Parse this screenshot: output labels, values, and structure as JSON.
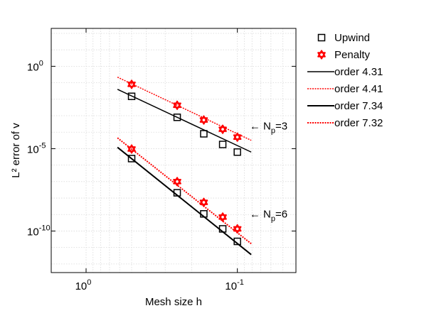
{
  "chart_data": {
    "type": "scatter",
    "title": "",
    "xlabel": "Mesh size h",
    "ylabel": "L² error of v",
    "xscale": "log",
    "yscale": "log",
    "x_reversed": true,
    "xlim": [
      1.7,
      0.041
    ],
    "ylim": [
      3e-13,
      200.0
    ],
    "grid": true,
    "legend_position": "right, outside",
    "x_ticks": [
      {
        "value": 1,
        "base": "10",
        "exp": "0"
      },
      {
        "value": 0.1,
        "base": "10",
        "exp": "-1"
      }
    ],
    "y_ticks": [
      {
        "value": 1,
        "base": "10",
        "exp": "0"
      },
      {
        "value": 1e-05,
        "base": "10",
        "exp": "-5"
      },
      {
        "value": 1e-10,
        "base": "10",
        "exp": "-10"
      }
    ],
    "series": [
      {
        "name": "Upwind",
        "kind": "markers",
        "marker": "square",
        "color": "#000000",
        "points": [
          {
            "x": 0.5,
            "y": 0.015
          },
          {
            "x": 0.25,
            "y": 0.0008
          },
          {
            "x": 0.1667,
            "y": 8e-05
          },
          {
            "x": 0.125,
            "y": 1.8e-05
          },
          {
            "x": 0.1,
            "y": 6.2e-06
          }
        ]
      },
      {
        "name": "Penalty",
        "kind": "markers",
        "marker": "hexagram",
        "color": "#ff0000",
        "points": [
          {
            "x": 0.5,
            "y": 0.08
          },
          {
            "x": 0.25,
            "y": 0.0043
          },
          {
            "x": 0.1667,
            "y": 0.00055
          },
          {
            "x": 0.125,
            "y": 0.00015
          },
          {
            "x": 0.1,
            "y": 5e-05
          }
        ]
      },
      {
        "name": "Upwind",
        "kind": "markers",
        "marker": "square",
        "color": "#000000",
        "points": [
          {
            "x": 0.5,
            "y": 2.5e-06
          },
          {
            "x": 0.25,
            "y": 2.1e-08
          },
          {
            "x": 0.1667,
            "y": 1.1e-09
          },
          {
            "x": 0.125,
            "y": 1.35e-10
          },
          {
            "x": 0.1,
            "y": 2.35e-11
          }
        ]
      },
      {
        "name": "Penalty",
        "kind": "markers",
        "marker": "hexagram",
        "color": "#ff0000",
        "points": [
          {
            "x": 0.5,
            "y": 9.5e-06
          },
          {
            "x": 0.25,
            "y": 1e-07
          },
          {
            "x": 0.1667,
            "y": 5.5e-09
          },
          {
            "x": 0.125,
            "y": 7e-10
          },
          {
            "x": 0.1,
            "y": 1.35e-10
          }
        ]
      },
      {
        "name": "order 4.31",
        "kind": "line",
        "style": "solid",
        "color": "#000000",
        "width": 1.5,
        "points": [
          {
            "x": 0.62,
            "y": 0.04
          },
          {
            "x": 0.081,
            "y": 6.2e-06
          }
        ]
      },
      {
        "name": "order 4.41",
        "kind": "line",
        "style": "dotted",
        "color": "#ff0000",
        "width": 1.5,
        "points": [
          {
            "x": 0.62,
            "y": 0.22
          },
          {
            "x": 0.081,
            "y": 3.2e-05
          }
        ]
      },
      {
        "name": "order 7.34",
        "kind": "line",
        "style": "solid",
        "color": "#000000",
        "width": 2,
        "points": [
          {
            "x": 0.62,
            "y": 1.2e-05
          },
          {
            "x": 0.081,
            "y": 3.7e-12
          }
        ]
      },
      {
        "name": "order 7.32",
        "kind": "line",
        "style": "dotted",
        "color": "#ff0000",
        "width": 2,
        "points": [
          {
            "x": 0.62,
            "y": 4.5e-05
          },
          {
            "x": 0.081,
            "y": 1.7e-11
          }
        ]
      }
    ],
    "legend": [
      {
        "label": "Upwind",
        "marker": "square",
        "color": "#000000"
      },
      {
        "label": "Penalty",
        "marker": "hexagram",
        "color": "#ff0000"
      },
      {
        "label": "order 4.31",
        "line": "solid",
        "color": "#000000",
        "width": 1.5
      },
      {
        "label": "order 4.41",
        "line": "dotted",
        "color": "#ff0000",
        "width": 1.5
      },
      {
        "label": "order 7.34",
        "line": "solid",
        "color": "#000000",
        "width": 2
      },
      {
        "label": "order 7.32",
        "line": "dotted",
        "color": "#ff0000",
        "width": 2
      }
    ],
    "annotations": [
      {
        "arrow": "←",
        "base": "N",
        "sub": "p",
        "suffix": "=3",
        "at": {
          "x": 0.083,
          "y": 0.00024
        }
      },
      {
        "arrow": "←",
        "base": "N",
        "sub": "p",
        "suffix": "=6",
        "at": {
          "x": 0.083,
          "y": 1.1e-09
        }
      }
    ]
  }
}
